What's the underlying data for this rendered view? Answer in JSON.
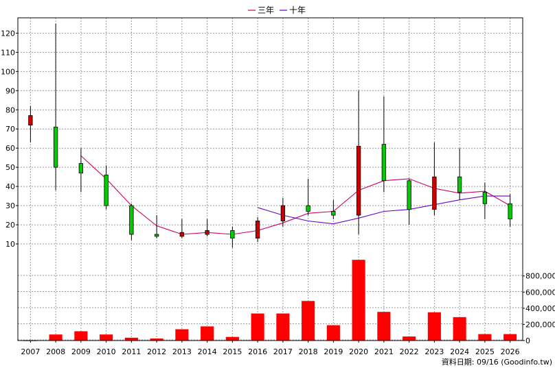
{
  "chart_data": {
    "type": "candlestick+bar",
    "x": [
      "2007",
      "2008",
      "2009",
      "2010",
      "2011",
      "2012",
      "2013",
      "2014",
      "2015",
      "2016",
      "2017",
      "2018",
      "2019",
      "2020",
      "2021",
      "2022",
      "2023",
      "2024",
      "2025",
      "2026"
    ],
    "candles": [
      {
        "open": 72,
        "high": 82,
        "low": 63,
        "close": 77
      },
      {
        "open": 71,
        "high": 125,
        "low": 38,
        "close": 50
      },
      {
        "open": 52,
        "high": 60,
        "low": 37,
        "close": 47
      },
      {
        "open": 46,
        "high": 51,
        "low": 28,
        "close": 30
      },
      {
        "open": 30,
        "high": 31,
        "low": 12,
        "close": 15
      },
      {
        "open": 15,
        "high": 25,
        "low": 13,
        "close": 14
      },
      {
        "open": 14,
        "high": 23,
        "low": 13,
        "close": 16
      },
      {
        "open": 15,
        "high": 23,
        "low": 14,
        "close": 17
      },
      {
        "open": 17,
        "high": 19,
        "low": 8,
        "close": 13
      },
      {
        "open": 13,
        "high": 24,
        "low": 11,
        "close": 22
      },
      {
        "open": 22,
        "high": 34,
        "low": 19,
        "close": 30
      },
      {
        "open": 30,
        "high": 44,
        "low": 25,
        "close": 27
      },
      {
        "open": 27,
        "high": 33,
        "low": 23,
        "close": 25
      },
      {
        "open": 25,
        "high": 90,
        "low": 15,
        "close": 61
      },
      {
        "open": 62,
        "high": 87,
        "low": 37,
        "close": 43
      },
      {
        "open": 43,
        "high": 44,
        "low": 20,
        "close": 28
      },
      {
        "open": 28,
        "high": 63,
        "low": 25,
        "close": 45
      },
      {
        "open": 45,
        "high": 60,
        "low": 33,
        "close": 37
      },
      {
        "open": 37,
        "high": 42,
        "low": 23,
        "close": 31
      },
      {
        "open": 31,
        "high": 36,
        "low": 19,
        "close": 23
      }
    ],
    "series": [
      {
        "name": "三年",
        "color": "#cc0066",
        "values": [
          null,
          null,
          56,
          44,
          30,
          19.5,
          15,
          16,
          15,
          17,
          21,
          26,
          27,
          38,
          43,
          44,
          39,
          36.5,
          37.5,
          30
        ]
      },
      {
        "name": "十年",
        "color": "#6600cc",
        "values": [
          null,
          null,
          null,
          null,
          null,
          null,
          null,
          null,
          null,
          29,
          25,
          22,
          20.5,
          23.5,
          27,
          28,
          30.5,
          33,
          35,
          35
        ]
      }
    ],
    "volume": [
      0,
      75000,
      115000,
      75000,
      35000,
      25000,
      140000,
      175000,
      45000,
      335000,
      335000,
      490000,
      190000,
      1000000,
      355000,
      50000,
      350000,
      290000,
      80000,
      80000
    ],
    "price_ylim": [
      0,
      128
    ],
    "price_ticks": [
      10,
      20,
      30,
      40,
      50,
      60,
      70,
      80,
      90,
      100,
      110,
      120
    ],
    "volume_ylim": [
      0,
      1010000
    ],
    "volume_ticks": [
      0,
      200000,
      400000,
      600000,
      800000
    ],
    "volume_tick_labels": [
      "0",
      "200,000",
      "400,000",
      "600,000",
      "800,000"
    ],
    "grid": true,
    "legend_placement": "top-center",
    "colors": {
      "up": "#cc0000",
      "down": "#00cc00",
      "volume": "#ff0000",
      "grid": "#999999"
    }
  },
  "footer": {
    "text": "資料日期: 09/16  (Goodinfo.tw)"
  }
}
